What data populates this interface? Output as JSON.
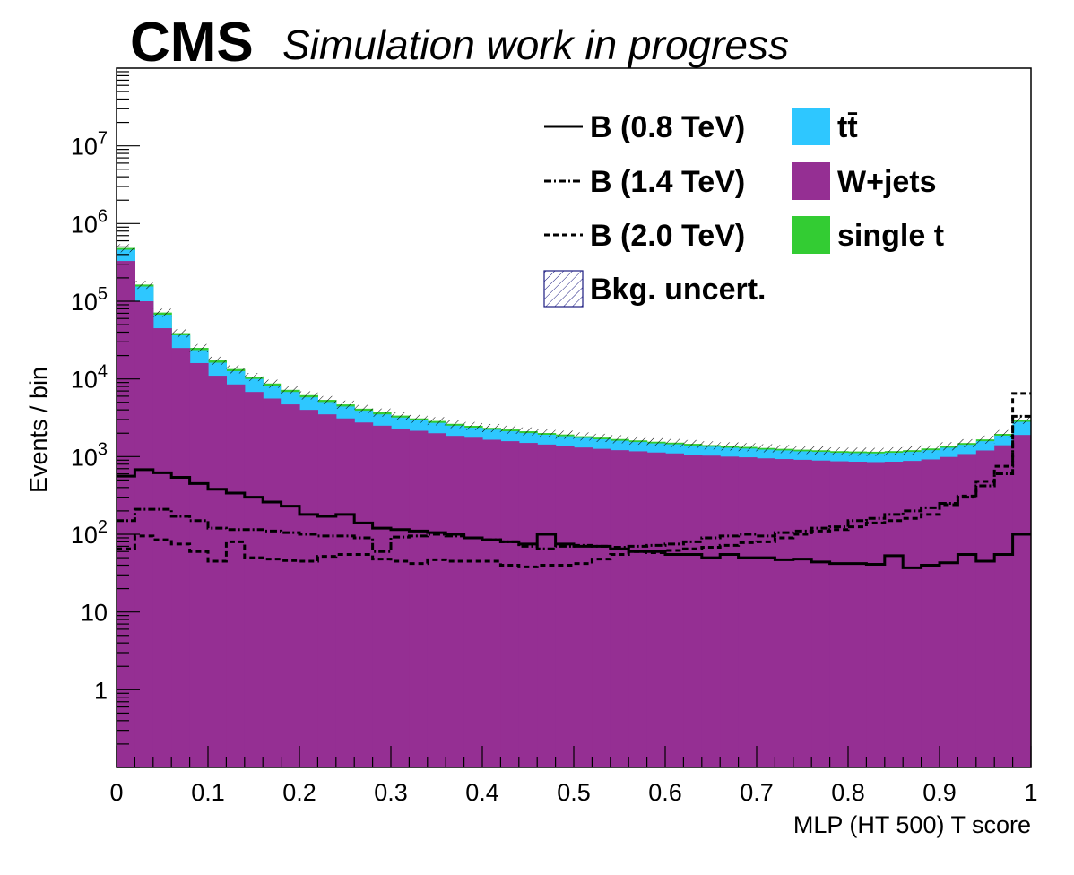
{
  "header": {
    "experiment": "CMS",
    "status": "Simulation work in progress"
  },
  "chart_data": {
    "type": "area",
    "xlabel": "MLP (HT 500) T score",
    "ylabel": "Events / bin",
    "xlim": [
      0,
      1
    ],
    "ylim": [
      0.1,
      100000000
    ],
    "log_y": true,
    "x_ticks": [
      "0",
      "0.1",
      "0.2",
      "0.3",
      "0.4",
      "0.5",
      "0.6",
      "0.7",
      "0.8",
      "0.9",
      "1"
    ],
    "y_ticks": [
      "1",
      "10",
      "10^2",
      "10^3",
      "10^4",
      "10^5",
      "10^6",
      "10^7"
    ],
    "legend_position": "top-right",
    "bins": 50,
    "bin_edges": [
      0,
      1
    ],
    "stack": [
      {
        "name": "W+jets",
        "color": "#952f93",
        "values": [
          330000,
          100000,
          45000,
          25000,
          16000,
          11000,
          8500,
          6800,
          5600,
          4700,
          4000,
          3500,
          3100,
          2750,
          2500,
          2300,
          2150,
          2000,
          1850,
          1750,
          1650,
          1580,
          1500,
          1430,
          1370,
          1310,
          1260,
          1210,
          1170,
          1130,
          1100,
          1060,
          1030,
          1000,
          980,
          950,
          930,
          910,
          890,
          870,
          860,
          850,
          860,
          880,
          920,
          990,
          1080,
          1200,
          1400,
          1900
        ]
      },
      {
        "name": "tt̄",
        "color": "#2ec7ff",
        "values": [
          130000,
          55000,
          22000,
          11500,
          7500,
          5200,
          4100,
          3200,
          2600,
          2100,
          1800,
          1550,
          1320,
          1150,
          1000,
          880,
          780,
          720,
          650,
          610,
          570,
          540,
          510,
          480,
          460,
          430,
          410,
          390,
          370,
          350,
          340,
          330,
          310,
          300,
          290,
          280,
          270,
          260,
          260,
          250,
          250,
          250,
          260,
          270,
          290,
          310,
          340,
          380,
          460,
          900
        ]
      },
      {
        "name": "single t",
        "color": "#33cc33",
        "values": [
          25000,
          9000,
          4500,
          2400,
          1600,
          1100,
          800,
          650,
          530,
          440,
          380,
          320,
          280,
          240,
          210,
          190,
          170,
          155,
          140,
          130,
          125,
          115,
          110,
          100,
          95,
          90,
          85,
          82,
          78,
          75,
          72,
          70,
          67,
          65,
          63,
          61,
          59,
          58,
          57,
          56,
          55,
          55,
          57,
          60,
          63,
          68,
          75,
          85,
          100,
          200
        ]
      }
    ],
    "uncertainty": {
      "name": "Bkg. uncert.",
      "rel_err": 0.12
    },
    "signals": [
      {
        "name": "B (0.8 TeV)",
        "style": "solid",
        "values": [
          560,
          680,
          620,
          540,
          450,
          380,
          340,
          300,
          260,
          230,
          180,
          170,
          180,
          140,
          120,
          115,
          110,
          105,
          100,
          90,
          85,
          80,
          75,
          100,
          75,
          70,
          70,
          65,
          60,
          60,
          55,
          55,
          50,
          55,
          50,
          50,
          47,
          48,
          44,
          42,
          42,
          41,
          53,
          37,
          40,
          43,
          55,
          45,
          55,
          100
        ]
      },
      {
        "name": "B (1.4 TeV)",
        "style": "dashdot",
        "values": [
          150,
          210,
          210,
          170,
          150,
          120,
          115,
          115,
          110,
          105,
          100,
          95,
          95,
          90,
          60,
          92,
          95,
          100,
          95,
          90,
          85,
          80,
          70,
          65,
          70,
          72,
          70,
          68,
          70,
          72,
          75,
          80,
          90,
          95,
          100,
          95,
          105,
          110,
          120,
          125,
          150,
          160,
          180,
          200,
          220,
          250,
          300,
          420,
          600,
          3300
        ]
      },
      {
        "name": "B (2.0 TeV)",
        "style": "dashed",
        "values": [
          65,
          95,
          85,
          75,
          60,
          45,
          80,
          50,
          48,
          46,
          45,
          52,
          55,
          55,
          48,
          45,
          42,
          47,
          45,
          45,
          45,
          40,
          38,
          40,
          40,
          42,
          48,
          55,
          60,
          58,
          62,
          65,
          68,
          72,
          78,
          80,
          90,
          100,
          110,
          115,
          125,
          140,
          150,
          160,
          180,
          240,
          310,
          480,
          750,
          6500
        ]
      }
    ]
  }
}
